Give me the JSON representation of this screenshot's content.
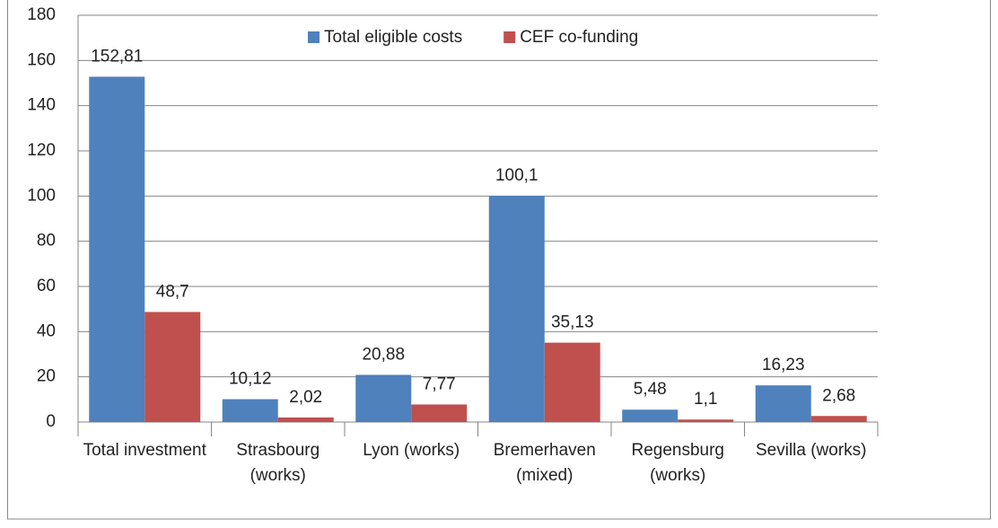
{
  "chart_data": {
    "type": "bar",
    "categories": [
      "Total investment",
      "Strasbourg (works)",
      "Lyon (works)",
      "Bremerhaven (mixed)",
      "Regensburg (works)",
      "Sevilla (works)"
    ],
    "series": [
      {
        "name": "Total eligible costs",
        "color": "#4f81bd",
        "values": [
          152.81,
          10.12,
          20.88,
          100.1,
          5.48,
          16.23
        ],
        "value_labels": [
          "152,81",
          "10,12",
          "20,88",
          "100,1",
          "5,48",
          "16,23"
        ]
      },
      {
        "name": "CEF co-funding",
        "color": "#c0504d",
        "values": [
          48.7,
          2.02,
          7.77,
          35.13,
          1.1,
          2.68
        ],
        "value_labels": [
          "48,7",
          "2,02",
          "7,77",
          "35,13",
          "1,1",
          "2,68"
        ]
      }
    ],
    "ylim": [
      0,
      180
    ],
    "yticks": [
      0,
      20,
      40,
      60,
      80,
      100,
      120,
      140,
      160,
      180
    ],
    "grid": true,
    "legend": "top"
  }
}
